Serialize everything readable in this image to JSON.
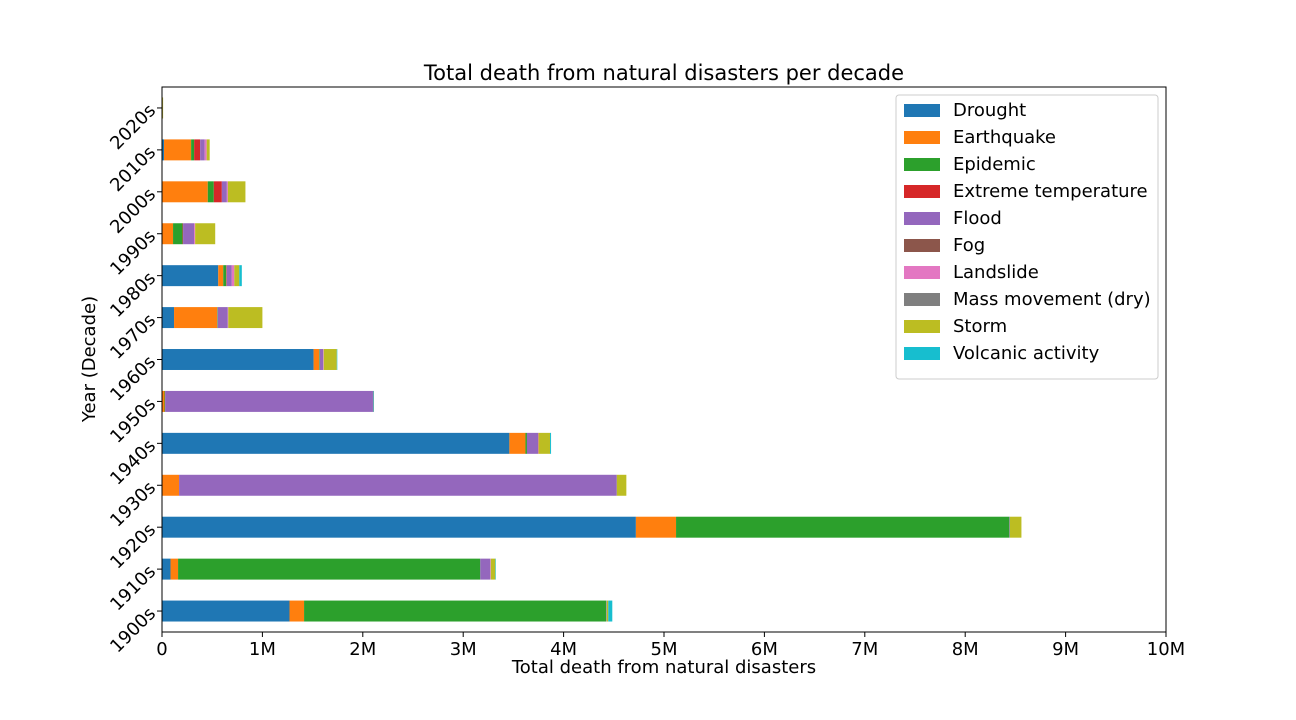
{
  "chart_data": {
    "type": "bar",
    "orientation": "horizontal",
    "stacked": true,
    "title": "Total death from natural disasters per decade",
    "xlabel": "Total death from natural disasters",
    "ylabel": "Year (Decade)",
    "xlim": [
      0,
      10000000
    ],
    "x_ticks": [
      0,
      1000000,
      2000000,
      3000000,
      4000000,
      5000000,
      6000000,
      7000000,
      8000000,
      9000000,
      10000000
    ],
    "x_tick_labels": [
      "0",
      "1M",
      "2M",
      "3M",
      "4M",
      "5M",
      "6M",
      "7M",
      "8M",
      "9M",
      "10M"
    ],
    "grid": false,
    "legend_position": "upper right",
    "categories": [
      "1900s",
      "1910s",
      "1920s",
      "1930s",
      "1940s",
      "1950s",
      "1960s",
      "1970s",
      "1980s",
      "1990s",
      "2000s",
      "2010s",
      "2020s"
    ],
    "series": [
      {
        "name": "Drought",
        "color": "#1f77b4",
        "values": [
          1270000,
          85000,
          4720000,
          0,
          3460000,
          0,
          1510000,
          120000,
          560000,
          0,
          1000,
          20000,
          0
        ]
      },
      {
        "name": "Earthquake",
        "color": "#ff7f0e",
        "values": [
          145000,
          75000,
          400000,
          170000,
          160000,
          25000,
          55000,
          430000,
          50000,
          110000,
          455000,
          270000,
          4000
        ]
      },
      {
        "name": "Epidemic",
        "color": "#2ca02c",
        "values": [
          3010000,
          3010000,
          3320000,
          0,
          15000,
          6000,
          6000,
          5000,
          30000,
          95000,
          60000,
          30000,
          0
        ]
      },
      {
        "name": "Extreme temperature",
        "color": "#d62728",
        "values": [
          0,
          0,
          0,
          0,
          0,
          0,
          0,
          0,
          5000,
          5000,
          80000,
          60000,
          1000
        ]
      },
      {
        "name": "Flood",
        "color": "#9467bd",
        "values": [
          5000,
          100000,
          5000,
          4360000,
          110000,
          2070000,
          35000,
          100000,
          50000,
          110000,
          50000,
          45000,
          1000
        ]
      },
      {
        "name": "Fog",
        "color": "#8c564b",
        "values": [
          0,
          0,
          0,
          0,
          0,
          4000,
          0,
          0,
          0,
          0,
          0,
          0,
          0
        ]
      },
      {
        "name": "Landslide",
        "color": "#e377c2",
        "values": [
          0,
          5000,
          0,
          0,
          5000,
          0,
          5000,
          5000,
          25000,
          10000,
          10000,
          20000,
          0
        ]
      },
      {
        "name": "Mass movement (dry)",
        "color": "#7f7f7f",
        "values": [
          0,
          0,
          0,
          0,
          0,
          0,
          0,
          0,
          0,
          0,
          0,
          0,
          0
        ]
      },
      {
        "name": "Storm",
        "color": "#bcbd22",
        "values": [
          15000,
          45000,
          115000,
          95000,
          115000,
          0,
          130000,
          340000,
          50000,
          200000,
          175000,
          30000,
          1000
        ]
      },
      {
        "name": "Volcanic activity",
        "color": "#17becf",
        "values": [
          40000,
          5000,
          0,
          0,
          10000,
          5000,
          5000,
          0,
          25000,
          0,
          0,
          0,
          0
        ]
      }
    ]
  }
}
